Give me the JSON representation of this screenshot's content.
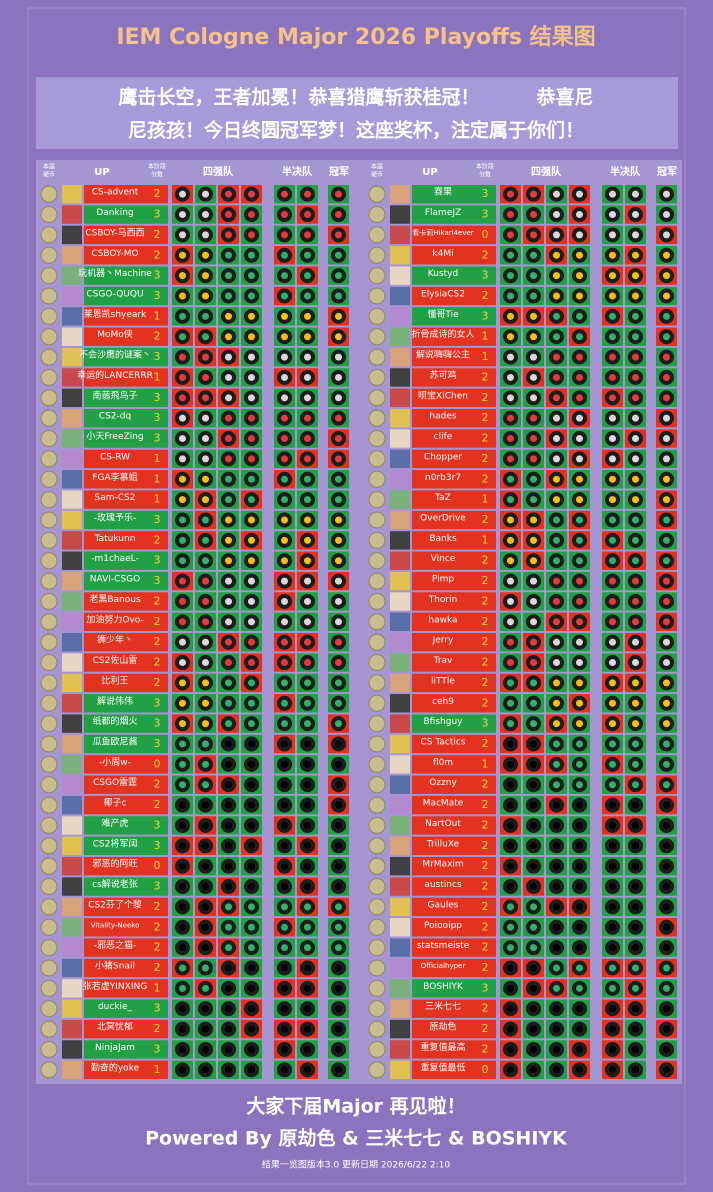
{
  "title": "IEM Cologne Major 2026 Playoffs 结果图",
  "banner": [
    "鹰击长空，王者加冕！恭喜猎鹰斩获桂冠！　　　恭喜尼",
    "尼孩孩！今日终圆冠军梦！这座奖杯，注定属于你们！"
  ],
  "headers": {
    "coin": [
      "本届",
      "硬币"
    ],
    "up": "UP",
    "score": [
      "本阶段",
      "分数"
    ],
    "quarter": "四强队",
    "semi": "半决队",
    "champion": "冠军"
  },
  "left": [
    {
      "name": "CS-advent",
      "score": 2
    },
    {
      "name": "Danking",
      "score": 3
    },
    {
      "name": "CSBOY-马西西",
      "score": 2
    },
    {
      "name": "CSBOY-MO",
      "score": 2
    },
    {
      "name": "玩机器丶Machine",
      "score": 3
    },
    {
      "name": "CSGO-QUQU",
      "score": 3
    },
    {
      "name": "莱恩凯shyeark",
      "score": 1
    },
    {
      "name": "MoMo侠",
      "score": 2
    },
    {
      "name": "不会沙鹰的谜案丶",
      "score": 3
    },
    {
      "name": "幸运的LANCERRR",
      "score": 1
    },
    {
      "name": "南蒻飛鸟子",
      "score": 3
    },
    {
      "name": "CS2-dq",
      "score": 3
    },
    {
      "name": "小天FreeZing",
      "score": 3
    },
    {
      "name": "CS-RW",
      "score": 1
    },
    {
      "name": "FGA李慕姐",
      "score": 1
    },
    {
      "name": "Sam-CS2",
      "score": 1
    },
    {
      "name": "-玫瑰予乐-",
      "score": 3
    },
    {
      "name": "Tatukunn",
      "score": 2
    },
    {
      "name": "-m1chaeL-",
      "score": 3
    },
    {
      "name": "NAVI-CSGO",
      "score": 3
    },
    {
      "name": "老黑Banous",
      "score": 2
    },
    {
      "name": "加油努力Ovo-",
      "score": 2
    },
    {
      "name": "狮少年丶",
      "score": 2
    },
    {
      "name": "CS2佐山雷",
      "score": 2
    },
    {
      "name": "比利王",
      "score": 2
    },
    {
      "name": "解说伟伟",
      "score": 3
    },
    {
      "name": "纸都的烟火",
      "score": 3
    },
    {
      "name": "瓜鱼欧尼酱",
      "score": 3
    },
    {
      "name": "-小周w-",
      "score": 0
    },
    {
      "name": "CSGO雷霆",
      "score": 2
    },
    {
      "name": "椰子c",
      "score": 2
    },
    {
      "name": "难产虎",
      "score": 3
    },
    {
      "name": "CS2将军阔",
      "score": 3
    },
    {
      "name": "邪恶的阿旺",
      "score": 0
    },
    {
      "name": "cs解说老张",
      "score": 3
    },
    {
      "name": "CS2芬了个黎",
      "score": 2
    },
    {
      "name": "Vitality-Neeko",
      "score": 2
    },
    {
      "name": "-邪恶之猫-",
      "score": 2
    },
    {
      "name": "小猪Snail",
      "score": 2
    },
    {
      "name": "张若虚YINXING",
      "score": 1
    },
    {
      "name": "duckie_",
      "score": 3
    },
    {
      "name": "北冥忧郁",
      "score": 2
    },
    {
      "name": "NinjaJam",
      "score": 3
    },
    {
      "name": "勤奋的yoke",
      "score": 1
    }
  ],
  "right": [
    {
      "name": "赛果",
      "score": 3
    },
    {
      "name": "FlameJZ",
      "score": 3
    },
    {
      "name": "看卡莉Hikari4ever",
      "score": 0
    },
    {
      "name": "k4Mi",
      "score": 2
    },
    {
      "name": "Kustyd",
      "score": 3
    },
    {
      "name": "ElysiaCS2",
      "score": 2
    },
    {
      "name": "懂哥Tie",
      "score": 3
    },
    {
      "name": "折骨成诗的女人",
      "score": 1
    },
    {
      "name": "解说嗨嗨公主",
      "score": 1
    },
    {
      "name": "苏可鸡",
      "score": 2
    },
    {
      "name": "呗宝XiChen",
      "score": 2
    },
    {
      "name": "hades",
      "score": 2
    },
    {
      "name": "clife",
      "score": 2
    },
    {
      "name": "Chopper",
      "score": 2
    },
    {
      "name": "n0rb3r7",
      "score": 2
    },
    {
      "name": "TaZ",
      "score": 1
    },
    {
      "name": "OverDrive",
      "score": 2
    },
    {
      "name": "Banks",
      "score": 1
    },
    {
      "name": "Vince",
      "score": 2
    },
    {
      "name": "Pimp",
      "score": 2
    },
    {
      "name": "Thorin",
      "score": 2
    },
    {
      "name": "hawka",
      "score": 2
    },
    {
      "name": "Jerry",
      "score": 2
    },
    {
      "name": "Trav",
      "score": 2
    },
    {
      "name": "liTTle",
      "score": 2
    },
    {
      "name": "ceh9",
      "score": 2
    },
    {
      "name": "Bfishguy",
      "score": 3
    },
    {
      "name": "CS Tactics",
      "score": 2
    },
    {
      "name": "fl0m",
      "score": 1
    },
    {
      "name": "Ozzny",
      "score": 2
    },
    {
      "name": "MacMate",
      "score": 2
    },
    {
      "name": "NartOut",
      "score": 2
    },
    {
      "name": "TrilluXe",
      "score": 2
    },
    {
      "name": "MrMaxim",
      "score": 2
    },
    {
      "name": "austincs",
      "score": 2
    },
    {
      "name": "Gaules",
      "score": 2
    },
    {
      "name": "Poiooipp",
      "score": 2
    },
    {
      "name": "statsmeiste",
      "score": 2
    },
    {
      "name": "Officialhyper",
      "score": 2
    },
    {
      "name": "BOSHIYK",
      "score": 3
    },
    {
      "name": "三米七七",
      "score": 2
    },
    {
      "name": "原劫色",
      "score": 2
    },
    {
      "name": "重复值最高",
      "score": 2
    },
    {
      "name": "重复值最低",
      "score": 0
    }
  ],
  "footer": {
    "line1": "大家下届Major 再见啦！",
    "line2": "Powered By 原劫色 & 三米七七 & BOSHIYK",
    "meta": "结果一览图版本3.0  更新日期 2026/6/22 2:10"
  }
}
